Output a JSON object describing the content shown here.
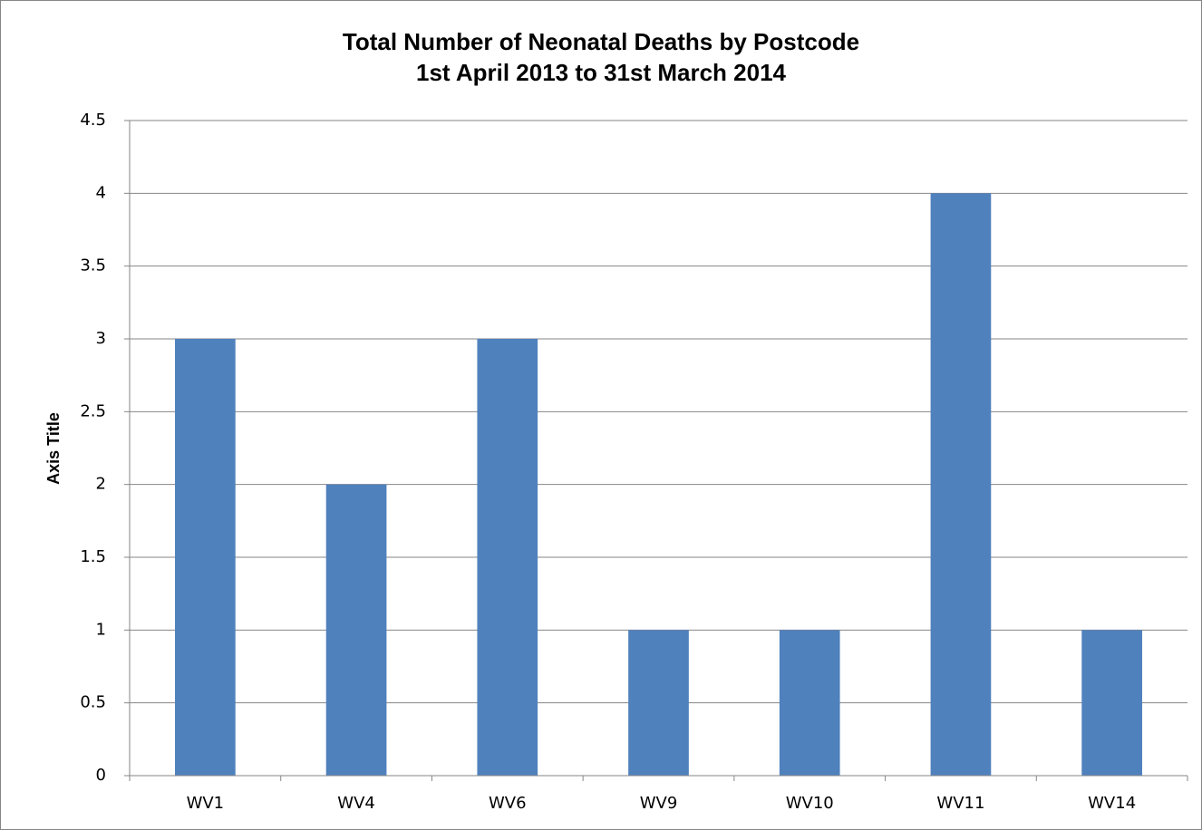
{
  "chart_data": {
    "type": "bar",
    "title": [
      "Total Number of Neonatal Deaths by Postcode",
      "1st April 2013 to 31st March 2014"
    ],
    "y_label": "Axis Title",
    "categories": [
      "WV1",
      "WV4",
      "WV6",
      "WV9",
      "WV10",
      "WV11",
      "WV14"
    ],
    "values": [
      3,
      2,
      3,
      1,
      1,
      4,
      1
    ],
    "color": "#4f81bd",
    "ylim": [
      0,
      4.5
    ],
    "yticks": [
      0,
      0.5,
      1,
      1.5,
      2,
      2.5,
      3,
      3.5,
      4,
      4.5
    ],
    "grid": true
  }
}
